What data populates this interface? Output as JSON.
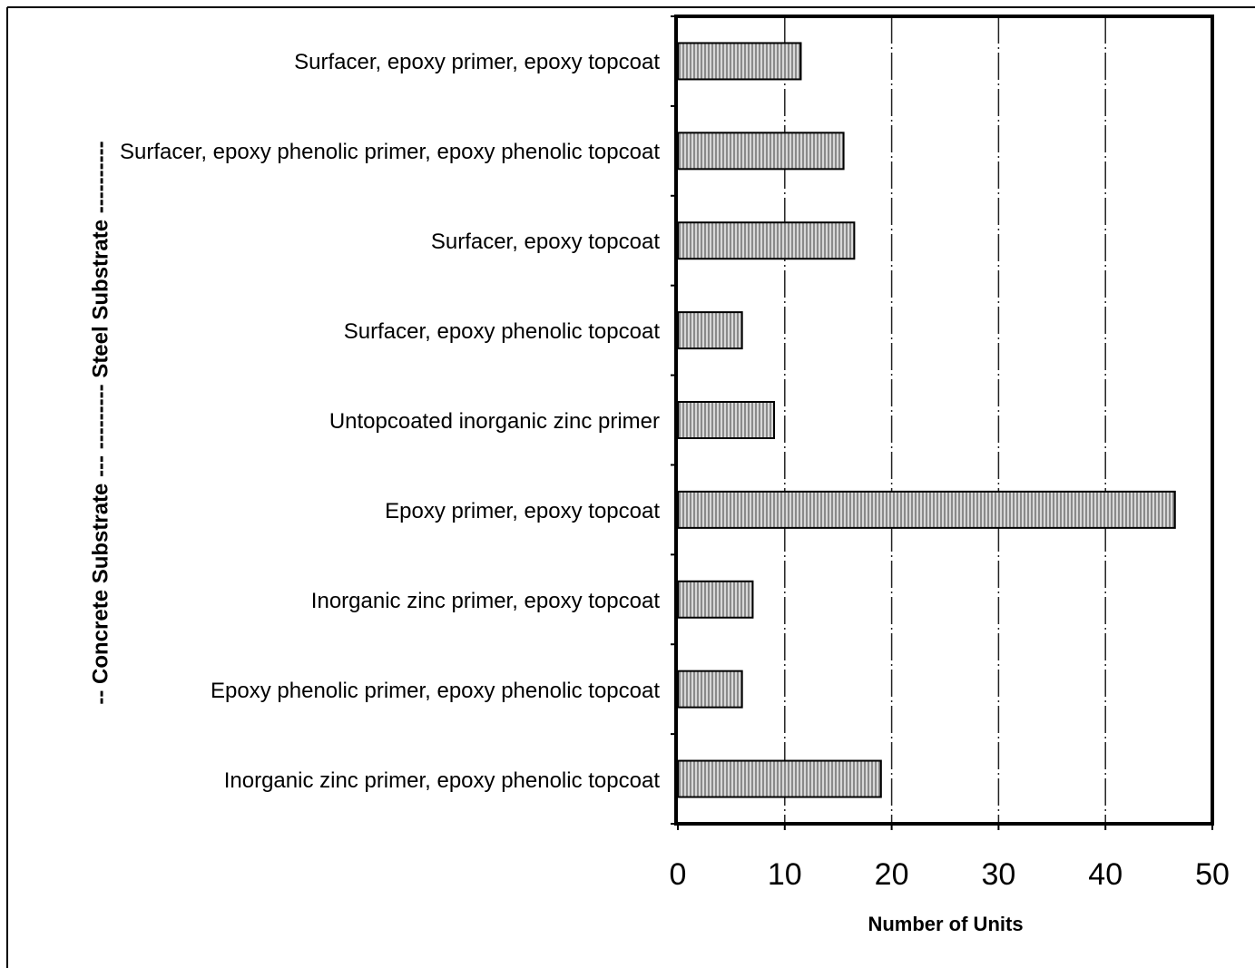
{
  "chart_data": {
    "type": "barh",
    "ylabel": "-- Concrete Substrate ---   --------- Steel Substrate ----------",
    "xlabel": "Number of Units",
    "categories": [
      "Surfacer, epoxy primer, epoxy topcoat",
      "Surfacer, epoxy phenolic primer, epoxy phenolic topcoat",
      "Surfacer, epoxy topcoat",
      "Surfacer, epoxy phenolic topcoat",
      "Untopcoated inorganic zinc primer",
      "Epoxy primer, epoxy topcoat",
      "Inorganic zinc primer, epoxy topcoat",
      "Epoxy phenolic primer, epoxy phenolic topcoat",
      "Inorganic zinc primer, epoxy phenolic topcoat"
    ],
    "values": [
      11.5,
      15.5,
      16.5,
      6,
      9,
      46.5,
      7,
      6,
      19
    ],
    "color": "#b8b8b8",
    "xlim": [
      0,
      50
    ],
    "xticks": [
      0,
      10,
      20,
      30,
      40,
      50
    ],
    "grid": true
  }
}
